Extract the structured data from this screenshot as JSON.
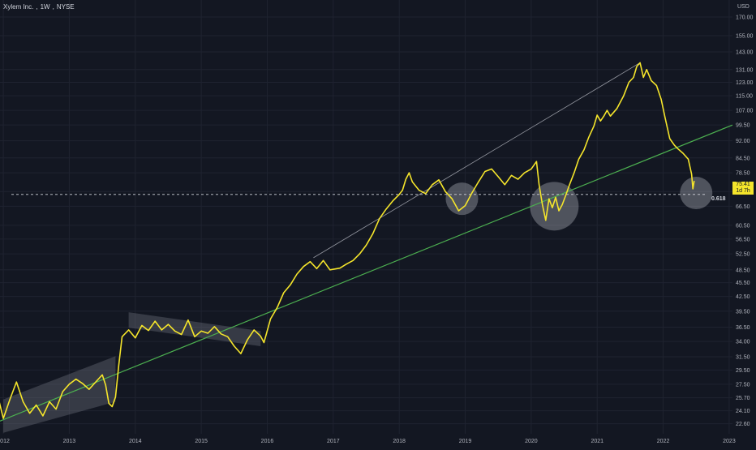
{
  "header": {
    "symbol_name": "Xylem Inc.",
    "interval": "1W",
    "exchange": "NYSE"
  },
  "axis": {
    "currency": "USD"
  },
  "colors": {
    "background": "#131722",
    "price_line": "#f5e52b",
    "trendline": "#4caf50",
    "channel_line": "#9598a1",
    "axis_text": "#b2b5be",
    "price_label_bg": "#f5e52b"
  },
  "last_price": {
    "value": "75.41",
    "countdown": "1d 7h"
  },
  "fib_level": {
    "label": "0.618",
    "price": 70.5
  },
  "chart_data": {
    "type": "line",
    "title": "Xylem Inc., 1W, NYSE",
    "y_scale": "log",
    "ylim": [
      21.5,
      185
    ],
    "y_ticks": [
      22.6,
      24.1,
      25.7,
      27.5,
      29.5,
      31.5,
      34.0,
      36.5,
      39.5,
      42.5,
      45.5,
      48.5,
      52.5,
      56.5,
      60.5,
      66.5,
      71.5,
      78.5,
      84.5,
      92.0,
      99.5,
      107.0,
      115.0,
      123.0,
      131.0,
      143.0,
      155.0,
      170.0
    ],
    "y_tick_labels": [
      "22.60",
      "24.10",
      "25.70",
      "27.50",
      "29.50",
      "31.50",
      "34.00",
      "36.50",
      "39.50",
      "42.50",
      "45.50",
      "48.50",
      "52.50",
      "56.50",
      "60.50",
      "66.50",
      "71.50",
      "78.50",
      "84.50",
      "92.00",
      "99.50",
      "107.00",
      "115.00",
      "123.00",
      "131.00",
      "143.00",
      "155.00",
      "170.00"
    ],
    "xlim": [
      2011.95,
      2023.05
    ],
    "x_ticks": [
      2012,
      2013,
      2014,
      2015,
      2016,
      2017,
      2018,
      2019,
      2020,
      2021,
      2022,
      2023
    ],
    "x_tick_labels": [
      "2012",
      "2013",
      "2014",
      "2015",
      "2016",
      "2017",
      "2018",
      "2019",
      "2020",
      "2021",
      "2022",
      "2023"
    ],
    "grid": true,
    "series": [
      {
        "points": [
          [
            2011.92,
            25.8
          ],
          [
            2012.0,
            23.2
          ],
          [
            2012.1,
            25.5
          ],
          [
            2012.2,
            27.8
          ],
          [
            2012.3,
            25.2
          ],
          [
            2012.4,
            23.8
          ],
          [
            2012.5,
            24.8
          ],
          [
            2012.6,
            23.5
          ],
          [
            2012.7,
            25.2
          ],
          [
            2012.8,
            24.3
          ],
          [
            2012.9,
            26.5
          ],
          [
            2013.0,
            27.5
          ],
          [
            2013.1,
            28.2
          ],
          [
            2013.2,
            27.6
          ],
          [
            2013.3,
            26.8
          ],
          [
            2013.4,
            27.8
          ],
          [
            2013.5,
            28.8
          ],
          [
            2013.55,
            27.4
          ],
          [
            2013.6,
            25.0
          ],
          [
            2013.65,
            24.6
          ],
          [
            2013.7,
            25.8
          ],
          [
            2013.75,
            30.2
          ],
          [
            2013.8,
            34.8
          ],
          [
            2013.9,
            36.0
          ],
          [
            2014.0,
            34.6
          ],
          [
            2014.1,
            36.8
          ],
          [
            2014.2,
            35.9
          ],
          [
            2014.3,
            37.6
          ],
          [
            2014.4,
            36.0
          ],
          [
            2014.5,
            37.0
          ],
          [
            2014.6,
            35.8
          ],
          [
            2014.7,
            35.2
          ],
          [
            2014.8,
            37.8
          ],
          [
            2014.9,
            34.8
          ],
          [
            2015.0,
            35.8
          ],
          [
            2015.1,
            35.4
          ],
          [
            2015.2,
            36.6
          ],
          [
            2015.3,
            35.3
          ],
          [
            2015.4,
            34.8
          ],
          [
            2015.5,
            33.2
          ],
          [
            2015.6,
            32.0
          ],
          [
            2015.7,
            34.3
          ],
          [
            2015.8,
            36.0
          ],
          [
            2015.9,
            34.9
          ],
          [
            2015.95,
            33.8
          ],
          [
            2016.05,
            38.0
          ],
          [
            2016.15,
            40.2
          ],
          [
            2016.25,
            43.3
          ],
          [
            2016.35,
            45.0
          ],
          [
            2016.45,
            47.5
          ],
          [
            2016.55,
            49.3
          ],
          [
            2016.65,
            50.5
          ],
          [
            2016.75,
            48.8
          ],
          [
            2016.85,
            50.8
          ],
          [
            2016.95,
            48.5
          ],
          [
            2017.1,
            48.9
          ],
          [
            2017.2,
            49.9
          ],
          [
            2017.3,
            50.8
          ],
          [
            2017.4,
            52.5
          ],
          [
            2017.5,
            54.8
          ],
          [
            2017.6,
            58.0
          ],
          [
            2017.7,
            62.5
          ],
          [
            2017.8,
            65.5
          ],
          [
            2017.9,
            68.2
          ],
          [
            2018.0,
            70.5
          ],
          [
            2018.05,
            72.0
          ],
          [
            2018.1,
            76.0
          ],
          [
            2018.15,
            78.5
          ],
          [
            2018.2,
            75.0
          ],
          [
            2018.3,
            72.0
          ],
          [
            2018.4,
            70.8
          ],
          [
            2018.5,
            74.0
          ],
          [
            2018.6,
            75.8
          ],
          [
            2018.7,
            71.5
          ],
          [
            2018.8,
            69.0
          ],
          [
            2018.9,
            65.0
          ],
          [
            2019.0,
            66.7
          ],
          [
            2019.1,
            71.0
          ],
          [
            2019.2,
            75.0
          ],
          [
            2019.3,
            79.0
          ],
          [
            2019.4,
            80.0
          ],
          [
            2019.5,
            77.0
          ],
          [
            2019.6,
            74.0
          ],
          [
            2019.7,
            77.5
          ],
          [
            2019.8,
            76.0
          ],
          [
            2019.9,
            78.5
          ],
          [
            2020.0,
            80.0
          ],
          [
            2020.08,
            83.0
          ],
          [
            2020.12,
            74.0
          ],
          [
            2020.17,
            67.0
          ],
          [
            2020.22,
            62.0
          ],
          [
            2020.27,
            69.0
          ],
          [
            2020.32,
            66.0
          ],
          [
            2020.37,
            69.5
          ],
          [
            2020.42,
            65.0
          ],
          [
            2020.47,
            67.0
          ],
          [
            2020.52,
            70.0
          ],
          [
            2020.58,
            74.0
          ],
          [
            2020.65,
            78.5
          ],
          [
            2020.72,
            84.0
          ],
          [
            2020.8,
            88.0
          ],
          [
            2020.87,
            93.5
          ],
          [
            2020.95,
            99.0
          ],
          [
            2021.0,
            104.5
          ],
          [
            2021.05,
            101.5
          ],
          [
            2021.1,
            104.0
          ],
          [
            2021.15,
            107.0
          ],
          [
            2021.2,
            104.0
          ],
          [
            2021.3,
            108.0
          ],
          [
            2021.4,
            115.0
          ],
          [
            2021.48,
            123.0
          ],
          [
            2021.55,
            126.0
          ],
          [
            2021.6,
            133.0
          ],
          [
            2021.65,
            135.5
          ],
          [
            2021.7,
            126.0
          ],
          [
            2021.75,
            131.0
          ],
          [
            2021.82,
            124.0
          ],
          [
            2021.9,
            121.0
          ],
          [
            2021.97,
            113.0
          ],
          [
            2022.03,
            103.0
          ],
          [
            2022.1,
            93.0
          ],
          [
            2022.17,
            90.0
          ],
          [
            2022.22,
            88.5
          ],
          [
            2022.3,
            86.5
          ],
          [
            2022.38,
            84.0
          ],
          [
            2022.43,
            78.0
          ],
          [
            2022.45,
            72.5
          ],
          [
            2022.47,
            75.41
          ]
        ]
      }
    ],
    "annotations": {
      "horizontal_line": {
        "y": 70.5,
        "label": "0.618",
        "style": "dashed"
      },
      "trendline_green": {
        "start": [
          2011.95,
          22.9
        ],
        "end": [
          2023.05,
          99.5
        ]
      },
      "trendline_grey": {
        "start": [
          2016.7,
          51.5
        ],
        "end": [
          2021.65,
          135.5
        ]
      },
      "channel_shapes": [
        {
          "points": [
            [
              2012.0,
              25.5
            ],
            [
              2013.7,
              31.6
            ],
            [
              2013.7,
              25.2
            ],
            [
              2012.0,
              21.6
            ]
          ]
        },
        {
          "points": [
            [
              2013.9,
              39.3
            ],
            [
              2015.9,
              35.8
            ],
            [
              2015.9,
              33.2
            ],
            [
              2013.9,
              36.4
            ]
          ]
        }
      ],
      "circles": [
        {
          "center": [
            2018.95,
            69.0
          ],
          "radius_units": "price"
        },
        {
          "center": [
            2020.35,
            66.5
          ],
          "radius_units": "price"
        },
        {
          "center": [
            2022.5,
            71.0
          ],
          "radius_units": "price"
        }
      ]
    }
  }
}
